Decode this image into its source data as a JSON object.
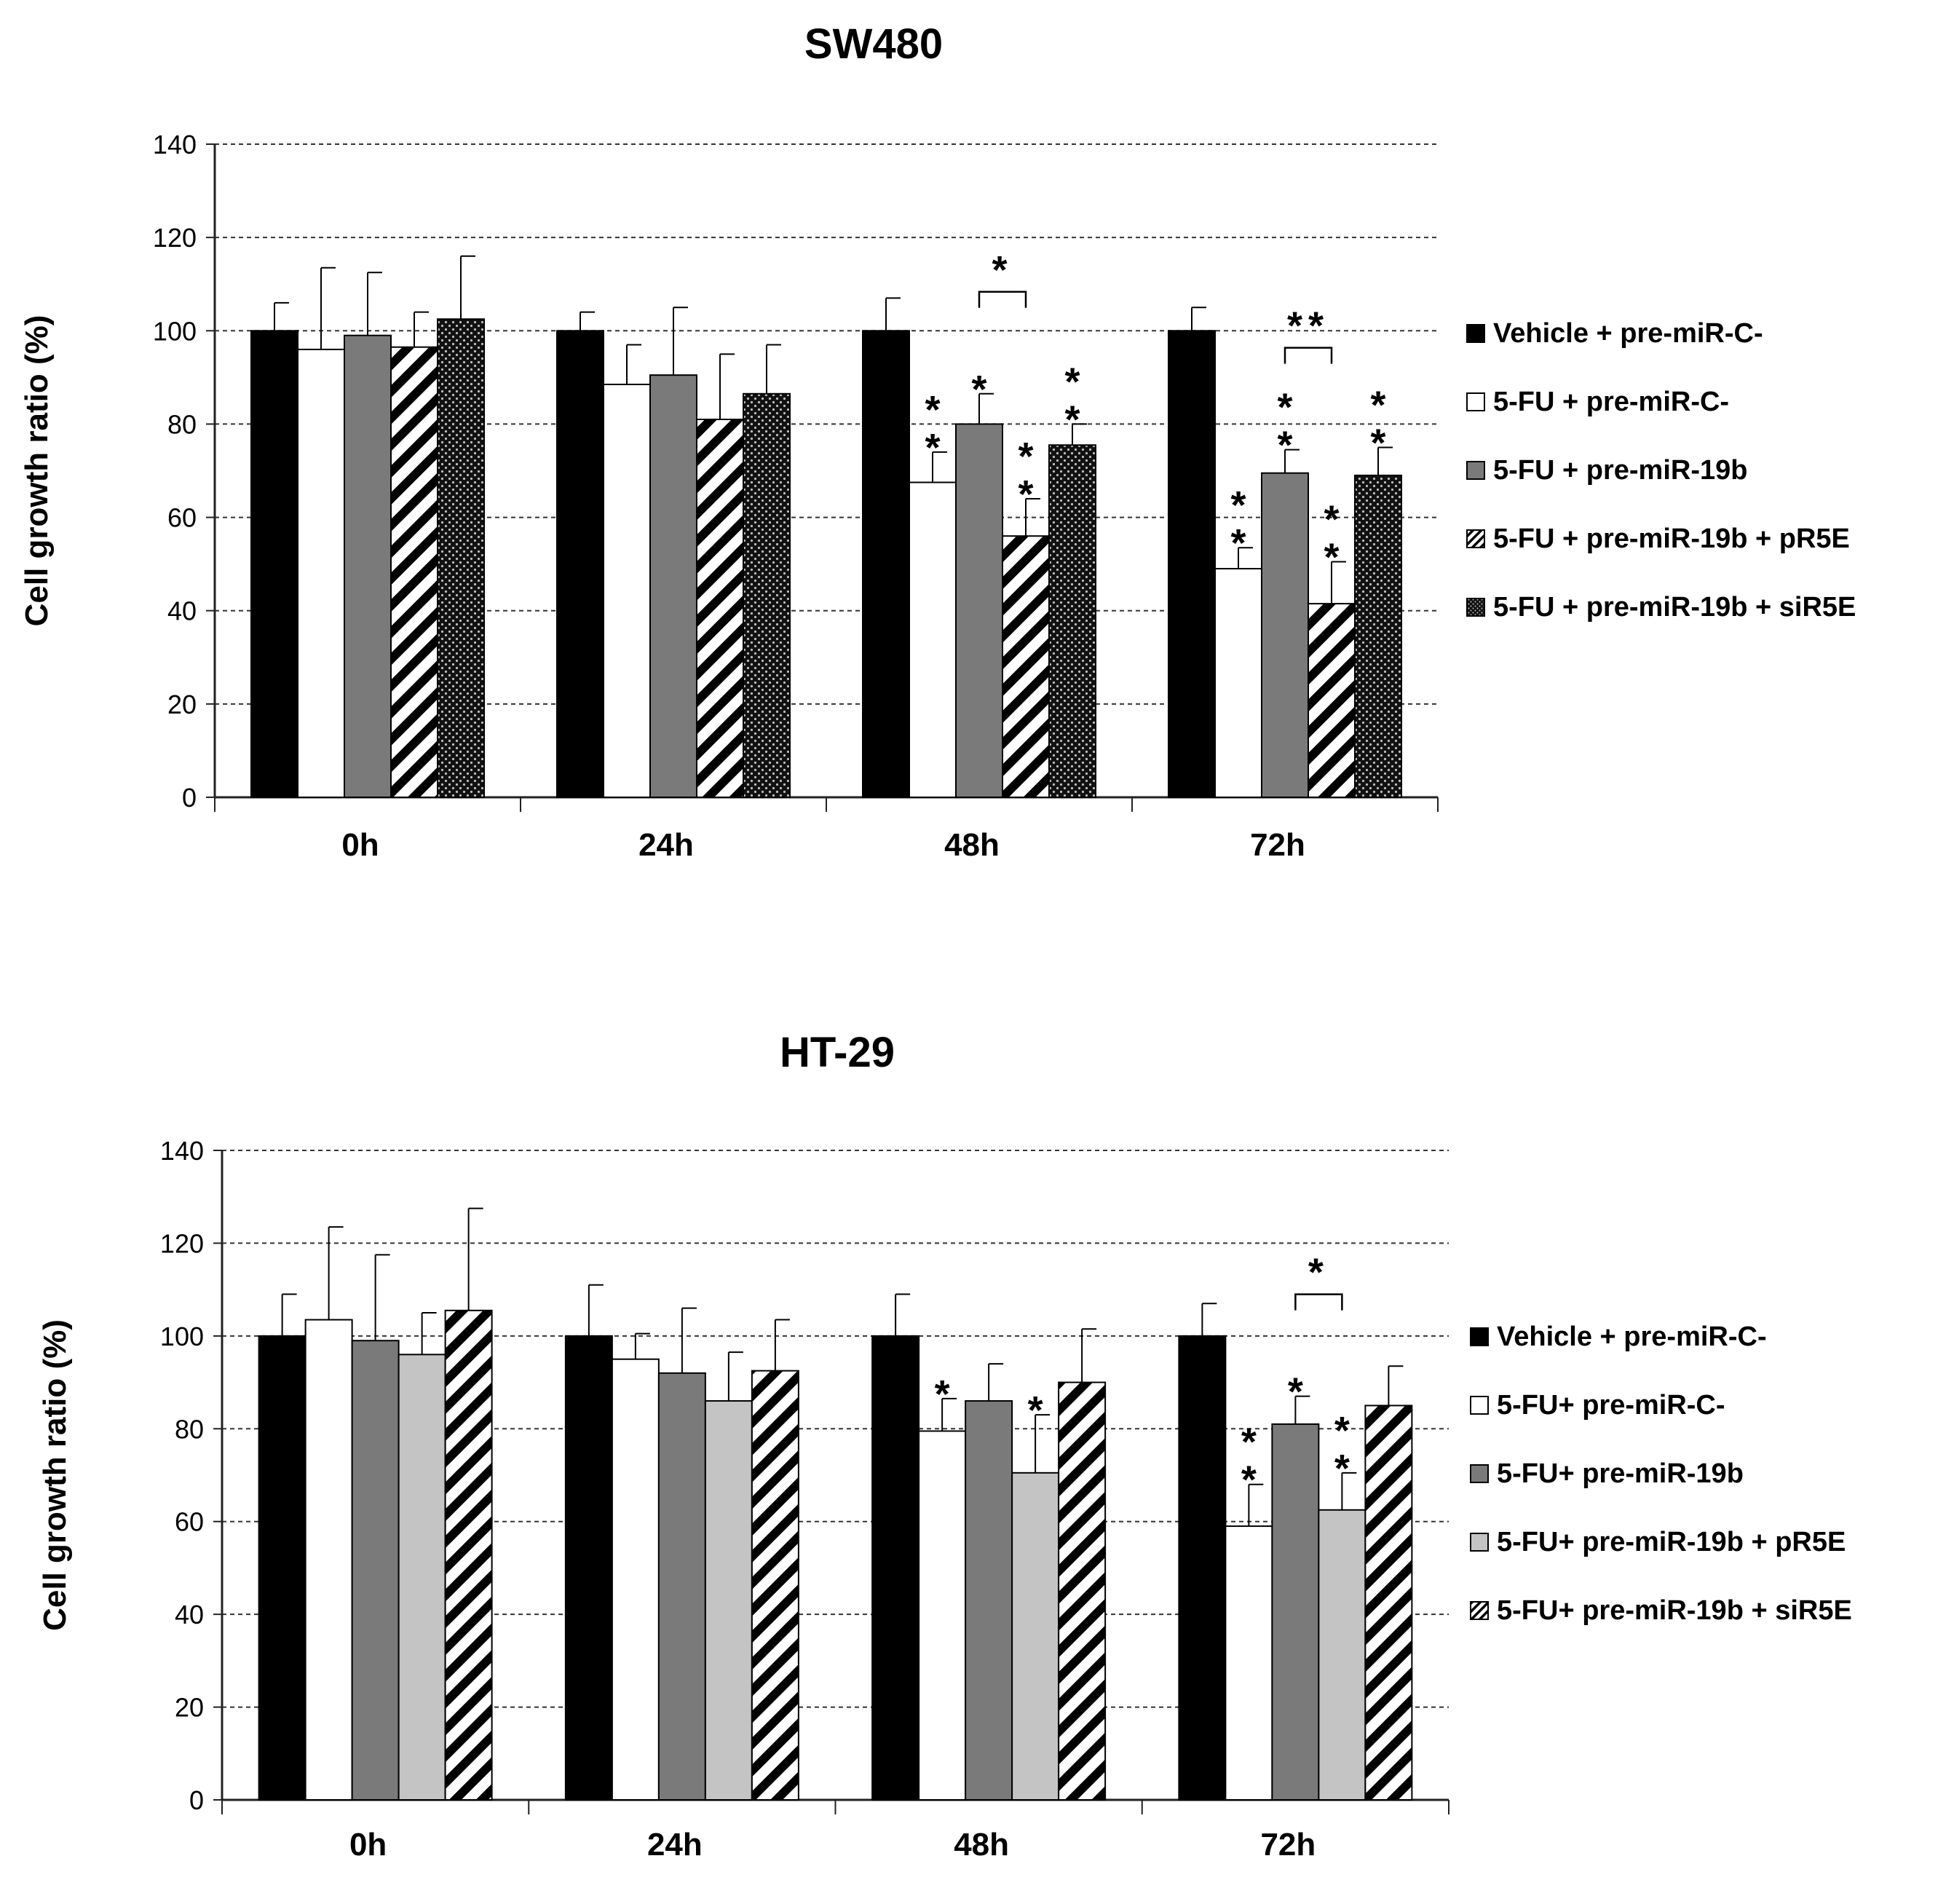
{
  "chart_data": [
    {
      "type": "bar",
      "title": "SW480",
      "ylabel": "Cell growth ratio (%)",
      "xlabel": "",
      "ylim": [
        0,
        140
      ],
      "yticks": [
        0,
        20,
        40,
        60,
        80,
        100,
        120,
        140
      ],
      "grid": true,
      "legend_position": "right",
      "categories": [
        "0h",
        "24h",
        "48h",
        "72h"
      ],
      "series": [
        {
          "name": "Vehicle + pre-miR-C-",
          "pattern": "solid-black",
          "values": [
            100,
            100,
            100,
            100
          ],
          "errors": [
            6,
            4,
            7,
            5
          ]
        },
        {
          "name": "5-FU + pre-miR-C-",
          "pattern": "white",
          "values": [
            96,
            88.5,
            67.5,
            49
          ],
          "errors": [
            17.5,
            8.5,
            6.5,
            4.5
          ]
        },
        {
          "name": "5-FU + pre-miR-19b",
          "pattern": "gray",
          "values": [
            99,
            90.5,
            80,
            69.5
          ],
          "errors": [
            13.5,
            14.5,
            6.5,
            5
          ]
        },
        {
          "name": "5-FU + pre-miR-19b + pR5E",
          "pattern": "diagonal-stripes",
          "values": [
            96.5,
            81,
            56,
            41.5
          ],
          "errors": [
            7.5,
            14,
            8,
            9
          ]
        },
        {
          "name": "5-FU + pre-miR-19b + siR5E",
          "pattern": "dots",
          "values": [
            102.5,
            86.5,
            75.5,
            69
          ],
          "errors": [
            13.5,
            10.5,
            4.5,
            6
          ]
        }
      ],
      "significance": [
        {
          "category": "48h",
          "series": 1,
          "text": "**"
        },
        {
          "category": "48h",
          "series": 2,
          "text": "*"
        },
        {
          "category": "48h",
          "series": 3,
          "text": "**"
        },
        {
          "category": "48h",
          "series": 4,
          "text": "**"
        },
        {
          "category": "72h",
          "series": 1,
          "text": "**"
        },
        {
          "category": "72h",
          "series": 2,
          "text": "**"
        },
        {
          "category": "72h",
          "series": 3,
          "text": "**"
        },
        {
          "category": "72h",
          "series": 4,
          "text": "**"
        }
      ],
      "brackets": [
        {
          "category": "48h",
          "from_series": 2,
          "to_series": 3,
          "text": "*"
        },
        {
          "category": "72h",
          "from_series": 2,
          "to_series": 3,
          "text": "**"
        }
      ]
    },
    {
      "type": "bar",
      "title": "HT-29",
      "ylabel": "Cell growth ratio (%)",
      "xlabel": "",
      "ylim": [
        0,
        140
      ],
      "yticks": [
        0,
        20,
        40,
        60,
        80,
        100,
        120,
        140
      ],
      "grid": true,
      "legend_position": "right",
      "categories": [
        "0h",
        "24h",
        "48h",
        "72h"
      ],
      "series": [
        {
          "name": "Vehicle + pre-miR-C-",
          "pattern": "solid-black",
          "values": [
            100,
            100,
            100,
            100
          ],
          "errors": [
            9,
            11,
            9,
            7
          ]
        },
        {
          "name": "5-FU + pre-miR-C-",
          "pattern": "white",
          "values": [
            103.5,
            95,
            79.5,
            59
          ],
          "errors": [
            20,
            5.5,
            7,
            9
          ]
        },
        {
          "name": "5-FU + pre-miR-19b",
          "pattern": "gray",
          "values": [
            99,
            92,
            86,
            81
          ],
          "errors": [
            18.5,
            14,
            8,
            6
          ]
        },
        {
          "name": "5-FU + pre-miR-19b + pR5E",
          "pattern": "light-gray",
          "values": [
            96,
            86,
            70.5,
            62.5
          ],
          "errors": [
            9,
            10.5,
            12.5,
            8
          ]
        },
        {
          "name": "5-FU + pre-miR-19b + siR5E",
          "pattern": "diagonal-stripes",
          "values": [
            105.5,
            92.5,
            90,
            85
          ],
          "errors": [
            22,
            11,
            11.5,
            8.5
          ]
        }
      ],
      "significance": [
        {
          "category": "48h",
          "series": 1,
          "text": "*"
        },
        {
          "category": "48h",
          "series": 3,
          "text": "*"
        },
        {
          "category": "72h",
          "series": 1,
          "text": "**"
        },
        {
          "category": "72h",
          "series": 2,
          "text": "*"
        },
        {
          "category": "72h",
          "series": 3,
          "text": "**"
        }
      ],
      "brackets": [
        {
          "category": "72h",
          "from_series": 2,
          "to_series": 3,
          "text": "*"
        }
      ]
    }
  ],
  "colors": {
    "solid-black": "#000000",
    "white": "#ffffff",
    "gray": "#7a7a7a",
    "light-gray": "#c4c4c4",
    "axis": "#222222",
    "grid": "#333333"
  },
  "legend_labels_sw480": [
    "Vehicle + pre-miR-C-",
    "5-FU + pre-miR-C-",
    "5-FU + pre-miR-19b",
    "5-FU + pre-miR-19b + pR5E",
    "5-FU + pre-miR-19b + siR5E"
  ],
  "legend_labels_ht29": [
    "Vehicle + pre-miR-C-",
    "5-FU+ pre-miR-C-",
    "5-FU+ pre-miR-19b",
    "5-FU+ pre-miR-19b + pR5E",
    "5-FU+ pre-miR-19b + siR5E"
  ]
}
